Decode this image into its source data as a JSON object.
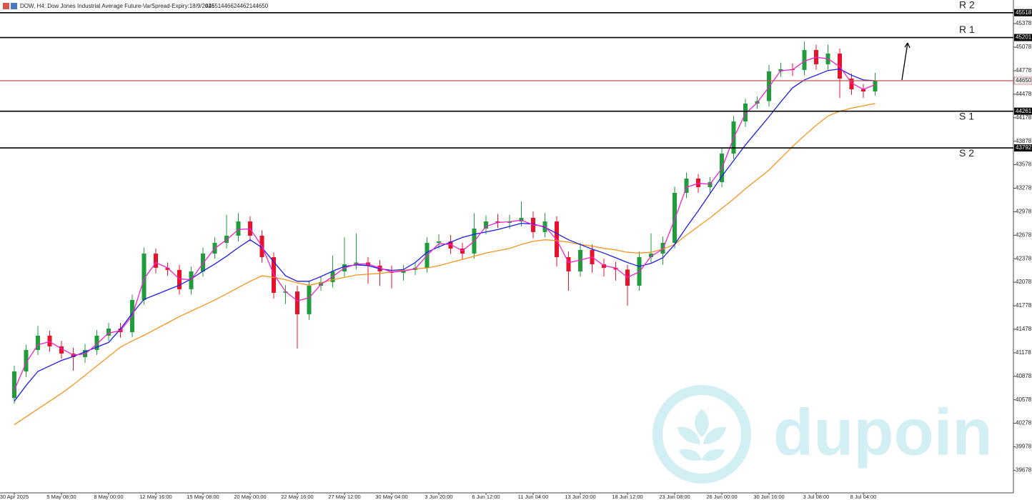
{
  "header": {
    "symbol": "DOW, H4: Dow Jones Industrial Average Future-VarSpread-Expiry:18/9/2025",
    "ohlc": [
      44651,
      44662,
      44621,
      44650
    ]
  },
  "watermark": "dupoin",
  "chart_data": {
    "type": "candlestick",
    "categories": [
      "30 Apr 2025",
      null,
      null,
      null,
      "5 May 08:00",
      null,
      null,
      null,
      "8 May 00:00",
      null,
      null,
      null,
      "12 May 16:00",
      null,
      null,
      null,
      "15 May 08:00",
      null,
      null,
      null,
      "20 May 00:00",
      null,
      null,
      null,
      "22 May 16:00",
      null,
      null,
      null,
      "27 May 12:00",
      null,
      null,
      null,
      "30 May 04:00",
      null,
      null,
      null,
      "3 Jun 20:00",
      null,
      null,
      null,
      "6 Jun 12:00",
      null,
      null,
      null,
      "11 Jun 04:00",
      null,
      null,
      null,
      "13 Jun 20:00",
      null,
      null,
      null,
      "18 Jun 12:00",
      null,
      null,
      null,
      "23 Jun 08:00",
      null,
      null,
      null,
      "26 Jun 00:00",
      null,
      null,
      null,
      "30 Jun 16:00",
      null,
      null,
      null,
      "3 Jul 08:00",
      null,
      null,
      null,
      "8 Jul 04:00",
      null
    ],
    "open": [
      40600,
      40940,
      41213,
      41396,
      41259,
      41168,
      41122,
      41213,
      41396,
      41487,
      41441,
      41852,
      42444,
      42262,
      42235,
      41989,
      42216,
      42444,
      42581,
      42672,
      42854,
      42672,
      42398,
      41943,
      41960,
      41670,
      42034,
      42080,
      42216,
      42307,
      42330,
      42290,
      42216,
      42198,
      42235,
      42262,
      42581,
      42599,
      42508,
      42444,
      42763,
      42854,
      42836,
      42854,
      42900,
      42718,
      42854,
      42398,
      42216,
      42490,
      42307,
      42262,
      42240,
      42034,
      42398,
      42444,
      42581,
      43219,
      43401,
      43292,
      43356,
      43720,
      44130,
      44358,
      44390,
      44769,
      44796,
      44787,
      45042,
      44860,
      44996,
      44677,
      44540,
      44513
    ],
    "high": [
      41010,
      41280,
      41520,
      41460,
      41330,
      41240,
      41290,
      41470,
      41560,
      41560,
      41920,
      42520,
      42510,
      42330,
      42300,
      42280,
      42520,
      42650,
      42940,
      42960,
      42920,
      42740,
      42460,
      42040,
      42030,
      42100,
      42150,
      42420,
      42650,
      42700,
      42400,
      42360,
      42290,
      42300,
      42330,
      42650,
      42690,
      42680,
      42580,
      42960,
      42930,
      42950,
      42940,
      43110,
      42980,
      42960,
      42920,
      42470,
      42580,
      42560,
      42380,
      42340,
      42300,
      42470,
      42700,
      42660,
      43300,
      43480,
      43460,
      43420,
      43790,
      44200,
      44420,
      44450,
      44850,
      44880,
      44870,
      45150,
      45110,
      45110,
      45060,
      44740,
      44610,
      44750
    ],
    "low": [
      40530,
      40870,
      41150,
      41190,
      41100,
      40950,
      41050,
      41150,
      41330,
      41370,
      41380,
      41790,
      42190,
      42160,
      41920,
      41920,
      42150,
      42380,
      42510,
      42600,
      42600,
      42330,
      41870,
      41800,
      41230,
      41600,
      41970,
      42010,
      42150,
      42240,
      42060,
      42030,
      42000,
      42100,
      42170,
      42200,
      42510,
      42440,
      42370,
      42380,
      42690,
      42770,
      42760,
      42790,
      42640,
      42650,
      42280,
      41970,
      42150,
      42200,
      42150,
      42100,
      41780,
      41970,
      42330,
      42300,
      42510,
      43150,
      43220,
      43220,
      43290,
      43650,
      44060,
      44290,
      44320,
      44700,
      44710,
      44720,
      44790,
      44790,
      44430,
      44470,
      44430,
      44460
    ],
    "close": [
      40940,
      41213,
      41396,
      41259,
      41168,
      41122,
      41213,
      41396,
      41487,
      41441,
      41852,
      42444,
      42262,
      42235,
      41989,
      42216,
      42444,
      42581,
      42672,
      42854,
      42672,
      42398,
      41943,
      41960,
      41670,
      42034,
      42080,
      42216,
      42307,
      42330,
      42290,
      42216,
      42198,
      42235,
      42262,
      42581,
      42599,
      42508,
      42444,
      42763,
      42854,
      42836,
      42854,
      42900,
      42718,
      42854,
      42398,
      42216,
      42490,
      42307,
      42262,
      42240,
      42034,
      42398,
      42444,
      42581,
      43219,
      43401,
      43292,
      43356,
      43720,
      44130,
      44358,
      44390,
      44769,
      44796,
      44787,
      45042,
      44860,
      44996,
      44677,
      44540,
      44513,
      44650
    ],
    "up_color": "#1f9d3a",
    "down_color": "#e8132b",
    "series": [
      {
        "color": "#f7941d",
        "values": [
          40260,
          40360,
          40460,
          40560,
          40660,
          40770,
          40890,
          41010,
          41130,
          41250,
          41330,
          41400,
          41480,
          41560,
          41640,
          41710,
          41780,
          41850,
          41930,
          42010,
          42090,
          42160,
          42140,
          42110,
          42070,
          42040,
          42070,
          42110,
          42140,
          42170,
          42180,
          42190,
          42210,
          42230,
          42250,
          42260,
          42290,
          42330,
          42370,
          42410,
          42450,
          42480,
          42510,
          42560,
          42600,
          42620,
          42610,
          42590,
          42560,
          42540,
          42510,
          42490,
          42460,
          42450,
          42460,
          42500,
          42560,
          42680,
          42790,
          42900,
          43020,
          43140,
          43270,
          43390,
          43510,
          43660,
          43810,
          43950,
          44080,
          44200,
          44260,
          44300,
          44330,
          44360
        ]
      },
      {
        "color": "#1c1ce8",
        "values": [
          40560,
          40760,
          40940,
          41010,
          41080,
          41130,
          41190,
          41250,
          41310,
          41480,
          41680,
          41860,
          41920,
          41980,
          42040,
          42120,
          42220,
          42310,
          42410,
          42520,
          42620,
          42520,
          42340,
          42160,
          42090,
          42090,
          42150,
          42220,
          42280,
          42300,
          42290,
          42250,
          42230,
          42240,
          42330,
          42460,
          42530,
          42590,
          42650,
          42690,
          42720,
          42750,
          42790,
          42830,
          42820,
          42780,
          42700,
          42620,
          42560,
          42500,
          42450,
          42390,
          42330,
          42280,
          42320,
          42390,
          42560,
          42780,
          42990,
          43210,
          43430,
          43630,
          43830,
          44010,
          44190,
          44380,
          44560,
          44660,
          44720,
          44780,
          44800,
          44720,
          44660,
          44650
        ]
      },
      {
        "color": "#ee22cc",
        "values": [
          40700,
          41050,
          41280,
          41320,
          41230,
          41150,
          41160,
          41290,
          41430,
          41460,
          41650,
          42120,
          42330,
          42260,
          42120,
          42110,
          42320,
          42510,
          42620,
          42750,
          42760,
          42540,
          42180,
          41960,
          41840,
          41880,
          42050,
          42150,
          42260,
          42310,
          42310,
          42260,
          42210,
          42220,
          42250,
          42420,
          42570,
          42560,
          42480,
          42600,
          42790,
          42840,
          42850,
          42870,
          42810,
          42790,
          42620,
          42330,
          42360,
          42400,
          42290,
          42260,
          42140,
          42210,
          42410,
          42500,
          42880,
          43290,
          43340,
          43330,
          43530,
          43920,
          44230,
          44370,
          44570,
          44780,
          44790,
          44900,
          44950,
          44930,
          44830,
          44620,
          44540,
          44600
        ]
      }
    ],
    "ylim": [
      39390,
      45680
    ],
    "yticks": [
      45378,
      45078,
      44778,
      44478,
      44178,
      43878,
      43578,
      43278,
      42978,
      42678,
      42378,
      42078,
      41778,
      41478,
      41178,
      40878,
      40578,
      40278,
      39978,
      39678
    ],
    "levels": [
      {
        "label": "R 2",
        "value": 45518
      },
      {
        "label": "R 1",
        "value": 45201
      },
      {
        "label": "S 1",
        "value": 44261
      },
      {
        "label": "S 2",
        "value": 43792
      }
    ],
    "level_color": "#000000",
    "current_price": 44650,
    "current_price_color": "#c0504d"
  }
}
